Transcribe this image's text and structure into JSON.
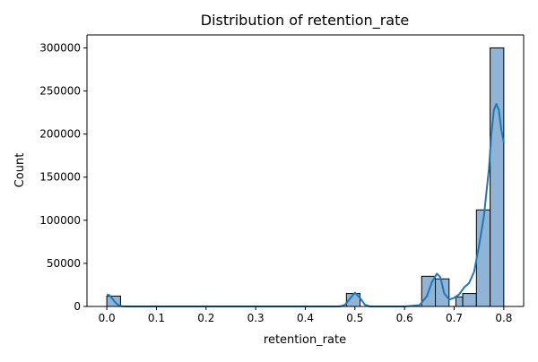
{
  "chart_data": {
    "type": "bar",
    "title": "Distribution of retention_rate",
    "xlabel": "retention_rate",
    "ylabel": "Count",
    "xlim": [
      -0.04,
      0.84
    ],
    "ylim": [
      0,
      315000
    ],
    "x_ticks": [
      0.0,
      0.1,
      0.2,
      0.3,
      0.4,
      0.5,
      0.6,
      0.7,
      0.8
    ],
    "x_tick_labels": [
      "0.0",
      "0.1",
      "0.2",
      "0.3",
      "0.4",
      "0.5",
      "0.6",
      "0.7",
      "0.8"
    ],
    "y_ticks": [
      0,
      50000,
      100000,
      150000,
      200000,
      250000,
      300000
    ],
    "y_tick_labels": [
      "0",
      "50000",
      "100000",
      "150000",
      "200000",
      "250000",
      "300000"
    ],
    "grid": false,
    "legend": "none",
    "bin_width": 0.02759,
    "bins": [
      {
        "x0": 0.0,
        "x1": 0.0276,
        "count": 12000
      },
      {
        "x0": 0.4828,
        "x1": 0.5103,
        "count": 15000
      },
      {
        "x0": 0.6345,
        "x1": 0.6621,
        "count": 35000
      },
      {
        "x0": 0.6621,
        "x1": 0.6897,
        "count": 32000
      },
      {
        "x0": 0.7034,
        "x1": 0.7172,
        "count": 11000
      },
      {
        "x0": 0.7172,
        "x1": 0.7448,
        "count": 15000
      },
      {
        "x0": 0.7448,
        "x1": 0.7724,
        "count": 112000
      },
      {
        "x0": 0.7724,
        "x1": 0.8,
        "count": 300000
      }
    ],
    "kde": {
      "x": [
        0.0,
        0.005,
        0.01,
        0.015,
        0.02,
        0.025,
        0.03,
        0.04,
        0.05,
        0.1,
        0.2,
        0.3,
        0.4,
        0.47,
        0.48,
        0.49,
        0.5,
        0.51,
        0.52,
        0.53,
        0.55,
        0.6,
        0.63,
        0.645,
        0.655,
        0.665,
        0.672,
        0.68,
        0.69,
        0.7,
        0.71,
        0.72,
        0.73,
        0.74,
        0.75,
        0.76,
        0.77,
        0.775,
        0.78,
        0.785,
        0.79,
        0.795,
        0.8
      ],
      "y": [
        14000,
        13000,
        10000,
        6000,
        3000,
        1000,
        300,
        0,
        0,
        0,
        0,
        0,
        0,
        0,
        2000,
        9000,
        16000,
        10000,
        2000,
        0,
        0,
        0,
        1500,
        12000,
        28000,
        38000,
        34000,
        15000,
        8000,
        10000,
        14000,
        22000,
        27000,
        40000,
        70000,
        105000,
        160000,
        200000,
        228000,
        235000,
        228000,
        205000,
        190000
      ]
    },
    "colors": {
      "bar_fill": "#8fb4d6",
      "bar_edge": "#000000",
      "kde_line": "#1f77b4",
      "axis": "#000000"
    }
  }
}
